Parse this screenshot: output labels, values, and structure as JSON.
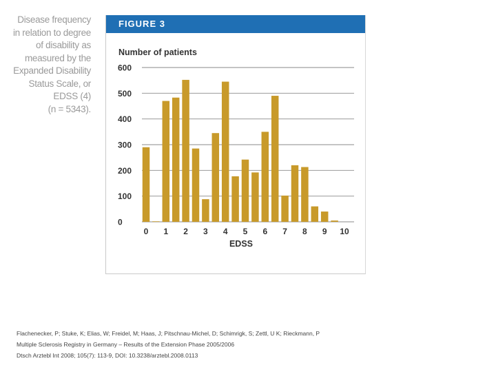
{
  "caption": {
    "lines": [
      "Disease frequency",
      "in relation to degree",
      "of disability as",
      "measured by the",
      "Expanded Disability",
      "Status Scale, or",
      "EDSS (4)",
      "(n = 5343)."
    ]
  },
  "figure": {
    "label": "FIGURE 3",
    "header_color": "#1f6fb4",
    "bar_color": "#c89a2a"
  },
  "chart_data": {
    "type": "bar",
    "title": "",
    "ylabel": "Number of patients",
    "xlabel": "EDSS",
    "ylim": [
      0,
      600
    ],
    "yticks": [
      0,
      100,
      200,
      300,
      400,
      500,
      600
    ],
    "xticks": [
      0,
      1,
      2,
      3,
      4,
      5,
      6,
      7,
      8,
      9,
      10
    ],
    "grid": true,
    "categories": [
      0,
      0.5,
      1,
      1.5,
      2,
      2.5,
      3,
      3.5,
      4,
      4.5,
      5,
      5.5,
      6,
      6.5,
      7,
      7.5,
      8,
      8.5,
      9,
      9.5
    ],
    "values": [
      290,
      2,
      470,
      483,
      552,
      285,
      88,
      345,
      545,
      177,
      242,
      192,
      350,
      490,
      102,
      220,
      213,
      60,
      40,
      5
    ]
  },
  "citation": {
    "lines": [
      "Flachenecker, P; Stuke, K; Elias, W; Freidel, M; Haas, J; Pitschnau-Michel, D; Schimrigk, S; Zettl, U K; Rieckmann, P",
      "Multiple Sclerosis Registry in Germany – Results of the Extension Phase 2005/2006",
      "Dtsch Arztebl Int 2008; 105(7): 113-9, DOI: 10.3238/arztebl.2008.0113"
    ]
  }
}
